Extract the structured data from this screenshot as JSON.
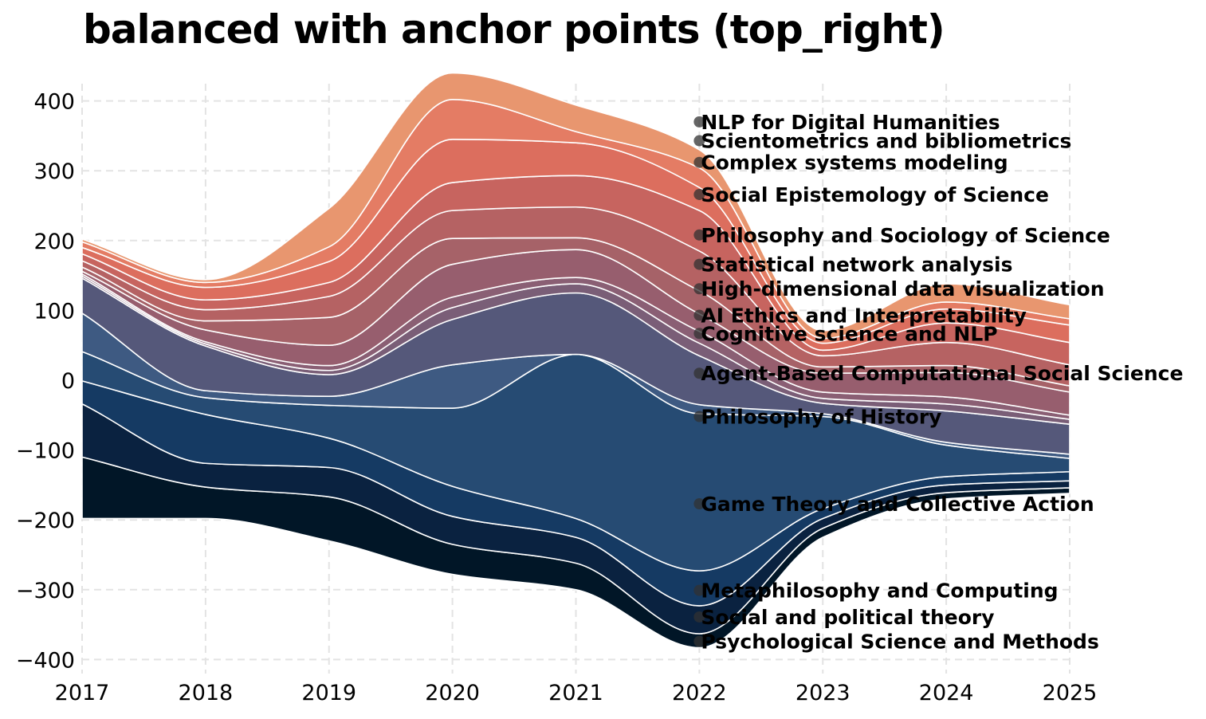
{
  "chart_data": {
    "type": "area",
    "title": "balanced with anchor points (top_right)",
    "xlabel": "",
    "ylabel": "",
    "x": [
      2017,
      2018,
      2019,
      2020,
      2021,
      2022,
      2023,
      2024,
      2025
    ],
    "xlim": [
      2017,
      2025
    ],
    "ylim": [
      -420,
      420
    ],
    "yticks": [
      -400,
      -300,
      -200,
      -100,
      0,
      100,
      200,
      300,
      400
    ],
    "ytick_labels": [
      "−400",
      "−300",
      "−200",
      "−100",
      "0",
      "100",
      "200",
      "300",
      "400"
    ],
    "xticks": [
      2017,
      2018,
      2019,
      2020,
      2021,
      2022,
      2023,
      2024,
      2025
    ],
    "grid": true,
    "anchor_x": 2022,
    "baseline": [
      -198,
      -198,
      -230,
      -278,
      -300,
      -383,
      -225,
      -170,
      -162
    ],
    "series": [
      {
        "name": "Psychological Science and Methods",
        "color": "#011627",
        "values": [
          88,
          45,
          63,
          43,
          38,
          20,
          13,
          9,
          8
        ]
      },
      {
        "name": "Social and political theory",
        "color": "#0a2240",
        "values": [
          76,
          34,
          42,
          40,
          37,
          40,
          14,
          11,
          10
        ]
      },
      {
        "name": "Metaphilosophy and Computing",
        "color": "#153a63",
        "values": [
          33,
          70,
          42,
          43,
          27,
          50,
          14,
          12,
          13
        ]
      },
      {
        "name": "Game Theory and Collective Action",
        "color": "#264b73",
        "values": [
          42,
          24,
          47,
          112,
          235,
          225,
          132,
          45,
          19
        ]
      },
      {
        "name": "Philosophy of History",
        "color": "#3e5a82",
        "values": [
          55,
          10,
          13,
          62,
          0,
          13,
          4,
          4,
          6
        ]
      },
      {
        "name": "Agent-Based Computational Social Science",
        "color": "#55587a",
        "values": [
          50,
          64,
          31,
          65,
          88,
          70,
          15,
          45,
          43
        ]
      },
      {
        "name": "Cognitive science and NLP",
        "color": "#7a5e77",
        "values": [
          3,
          3,
          6,
          17,
          13,
          18,
          7,
          10,
          7
        ]
      },
      {
        "name": "AI Ethics and Interpretability",
        "color": "#8a5f74",
        "values": [
          3,
          3,
          7,
          15,
          9,
          17,
          9,
          10,
          6
        ]
      },
      {
        "name": "High-dimensional data visualization",
        "color": "#975e6e",
        "values": [
          4,
          17,
          29,
          47,
          40,
          25,
          27,
          35,
          33
        ]
      },
      {
        "name": "Statistical network analysis",
        "color": "#a66268",
        "values": [
          6,
          13,
          40,
          37,
          17,
          33,
          9,
          10,
          9
        ]
      },
      {
        "name": "Philosophy and Sociology of Science",
        "color": "#b56263",
        "values": [
          9,
          16,
          30,
          40,
          44,
          57,
          16,
          33,
          30
        ]
      },
      {
        "name": "Social Epistemology of Science",
        "color": "#c7645f",
        "values": [
          10,
          14,
          20,
          40,
          45,
          58,
          8,
          28,
          32
        ]
      },
      {
        "name": "Complex systems modeling",
        "color": "#dc6e5e",
        "values": [
          9,
          18,
          30,
          62,
          47,
          33,
          10,
          20,
          25
        ]
      },
      {
        "name": "Scientometrics and bibliometrics",
        "color": "#e47c64",
        "values": [
          8,
          7,
          21,
          57,
          16,
          28,
          7,
          10,
          9
        ]
      },
      {
        "name": "NLP for Digital Humanities",
        "color": "#e8966f",
        "values": [
          4,
          4,
          55,
          38,
          38,
          26,
          11,
          26,
          20
        ]
      }
    ],
    "annotations": [
      {
        "series": "NLP for Digital Humanities",
        "x": 2022,
        "y": 370
      },
      {
        "series": "Scientometrics and bibliometrics",
        "x": 2022,
        "y": 343
      },
      {
        "series": "Complex systems modeling",
        "x": 2022,
        "y": 312
      },
      {
        "series": "Social Epistemology of Science",
        "x": 2022,
        "y": 266
      },
      {
        "series": "Philosophy and Sociology of Science",
        "x": 2022,
        "y": 208
      },
      {
        "series": "Statistical network analysis",
        "x": 2022,
        "y": 166
      },
      {
        "series": "High-dimensional data visualization",
        "x": 2022,
        "y": 131
      },
      {
        "series": "AI Ethics and Interpretability",
        "x": 2022,
        "y": 93
      },
      {
        "series": "Cognitive science and NLP",
        "x": 2022,
        "y": 67
      },
      {
        "series": "Agent-Based Computational Social Science",
        "x": 2022,
        "y": 10
      },
      {
        "series": "Philosophy of History",
        "x": 2022,
        "y": -52
      },
      {
        "series": "Game Theory and Collective Action",
        "x": 2022,
        "y": -177
      },
      {
        "series": "Metaphilosophy and Computing",
        "x": 2022,
        "y": -301
      },
      {
        "series": "Social and political theory",
        "x": 2022,
        "y": -339
      },
      {
        "series": "Psychological Science and Methods",
        "x": 2022,
        "y": -374
      }
    ]
  }
}
